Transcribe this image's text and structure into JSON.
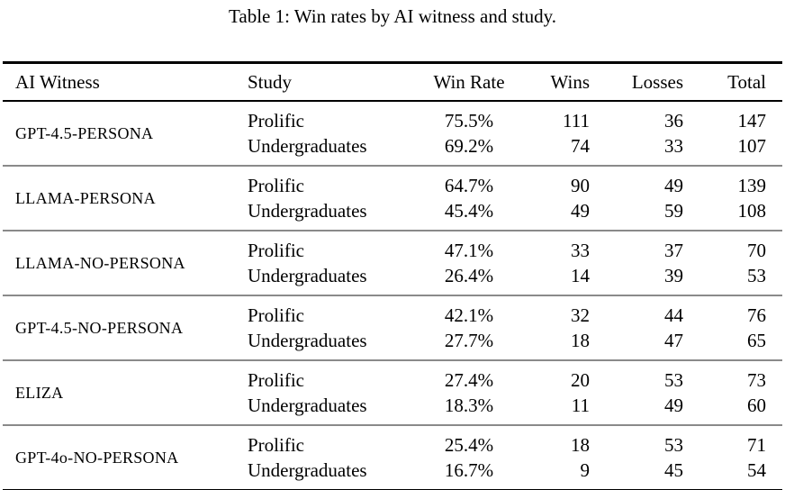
{
  "caption": "Table 1: Win rates by AI witness and study.",
  "colors": {
    "background": "#ffffff",
    "text": "#000000",
    "rule_heavy": "#000000",
    "rule_light": "#8a8a8a"
  },
  "table": {
    "headers": {
      "witness": "AI Witness",
      "study": "Study",
      "win_rate": "Win Rate",
      "wins": "Wins",
      "losses": "Losses",
      "total": "Total"
    },
    "groups": [
      {
        "witness": "GPT-4.5-PERSONA",
        "rows": [
          {
            "study": "Prolific",
            "win_rate": "75.5%",
            "wins": "111",
            "losses": "36",
            "total": "147"
          },
          {
            "study": "Undergraduates",
            "win_rate": "69.2%",
            "wins": "74",
            "losses": "33",
            "total": "107"
          }
        ]
      },
      {
        "witness": "LLAMA-PERSONA",
        "rows": [
          {
            "study": "Prolific",
            "win_rate": "64.7%",
            "wins": "90",
            "losses": "49",
            "total": "139"
          },
          {
            "study": "Undergraduates",
            "win_rate": "45.4%",
            "wins": "49",
            "losses": "59",
            "total": "108"
          }
        ]
      },
      {
        "witness": "LLAMA-NO-PERSONA",
        "rows": [
          {
            "study": "Prolific",
            "win_rate": "47.1%",
            "wins": "33",
            "losses": "37",
            "total": "70"
          },
          {
            "study": "Undergraduates",
            "win_rate": "26.4%",
            "wins": "14",
            "losses": "39",
            "total": "53"
          }
        ]
      },
      {
        "witness": "GPT-4.5-NO-PERSONA",
        "rows": [
          {
            "study": "Prolific",
            "win_rate": "42.1%",
            "wins": "32",
            "losses": "44",
            "total": "76"
          },
          {
            "study": "Undergraduates",
            "win_rate": "27.7%",
            "wins": "18",
            "losses": "47",
            "total": "65"
          }
        ]
      },
      {
        "witness": "ELIZA",
        "rows": [
          {
            "study": "Prolific",
            "win_rate": "27.4%",
            "wins": "20",
            "losses": "53",
            "total": "73"
          },
          {
            "study": "Undergraduates",
            "win_rate": "18.3%",
            "wins": "11",
            "losses": "49",
            "total": "60"
          }
        ]
      },
      {
        "witness": "GPT-4o-NO-PERSONA",
        "rows": [
          {
            "study": "Prolific",
            "win_rate": "25.4%",
            "wins": "18",
            "losses": "53",
            "total": "71"
          },
          {
            "study": "Undergraduates",
            "win_rate": "16.7%",
            "wins": "9",
            "losses": "45",
            "total": "54"
          }
        ]
      }
    ]
  }
}
